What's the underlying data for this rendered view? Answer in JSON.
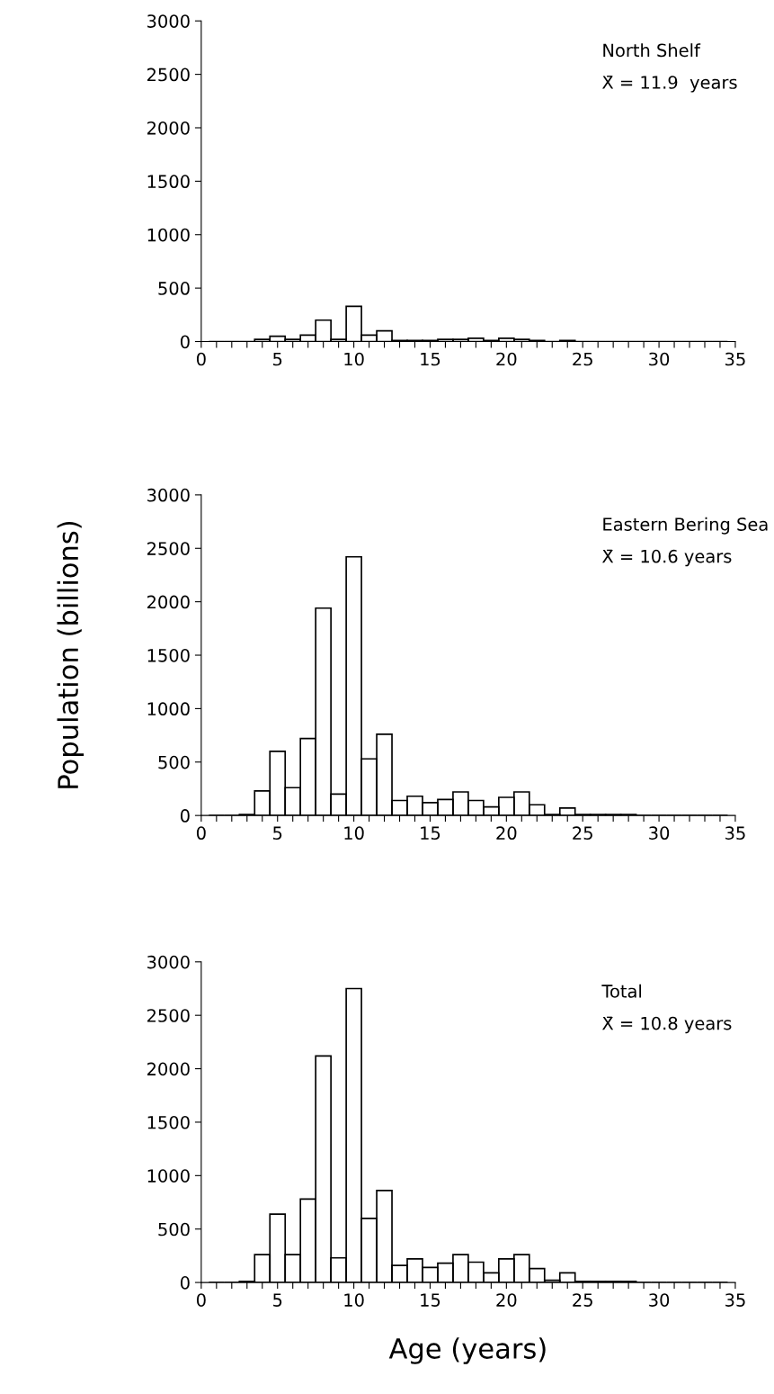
{
  "chart_data": [
    {
      "type": "histogram",
      "bins": [
        0.5,
        1.5,
        2.5,
        3.5,
        4.5,
        5.5,
        6.5,
        7.5,
        8.5,
        9.5,
        10.5,
        11.5,
        12.5,
        13.5,
        14.5,
        15.5,
        16.5,
        17.5,
        18.5,
        19.5,
        20.5,
        21.5,
        22.5,
        23.5,
        24.5,
        25.5,
        26.5,
        27.5,
        28.5,
        29.5,
        30.5,
        31.5,
        32.5,
        33.5,
        34.5
      ],
      "values": [
        0,
        0,
        0,
        20,
        50,
        20,
        60,
        200,
        20,
        330,
        60,
        100,
        10,
        10,
        10,
        20,
        20,
        30,
        10,
        30,
        20,
        10,
        0,
        10,
        0,
        0,
        0,
        0,
        0,
        0,
        0,
        0,
        0,
        0
      ],
      "color": "#000000",
      "annotations": [
        "North Shelf",
        "X̄ = 11.9  years"
      ],
      "xlim": [
        0,
        35
      ],
      "ylim": [
        0,
        3000
      ],
      "yticks": [
        0,
        500,
        1000,
        1500,
        2000,
        2500,
        3000
      ],
      "xticks": [
        0,
        {
          "value": 1,
          "label": null
        },
        {
          "value": 2,
          "label": null
        },
        {
          "value": 3,
          "label": null
        },
        {
          "value": 4,
          "label": null
        },
        5,
        {
          "value": 6,
          "label": null
        },
        {
          "value": 7,
          "label": null
        },
        {
          "value": 8,
          "label": null
        },
        {
          "value": 9,
          "label": null
        },
        10,
        {
          "value": 11,
          "label": null
        },
        {
          "value": 12,
          "label": null
        },
        {
          "value": 13,
          "label": null
        },
        {
          "value": 14,
          "label": null
        },
        15,
        {
          "value": 16,
          "label": null
        },
        {
          "value": 17,
          "label": null
        },
        {
          "value": 18,
          "label": null
        },
        {
          "value": 19,
          "label": null
        },
        20,
        {
          "value": 21,
          "label": null
        },
        {
          "value": 22,
          "label": null
        },
        {
          "value": 23,
          "label": null
        },
        {
          "value": 24,
          "label": null
        },
        25,
        {
          "value": 26,
          "label": null
        },
        {
          "value": 27,
          "label": null
        },
        {
          "value": 28,
          "label": null
        },
        {
          "value": 29,
          "label": null
        },
        30,
        {
          "value": 31,
          "label": null
        },
        {
          "value": 32,
          "label": null
        },
        {
          "value": 33,
          "label": null
        },
        {
          "value": 34,
          "label": null
        },
        35
      ]
    },
    {
      "type": "histogram",
      "bins": [
        0.5,
        1.5,
        2.5,
        3.5,
        4.5,
        5.5,
        6.5,
        7.5,
        8.5,
        9.5,
        10.5,
        11.5,
        12.5,
        13.5,
        14.5,
        15.5,
        16.5,
        17.5,
        18.5,
        19.5,
        20.5,
        21.5,
        22.5,
        23.5,
        24.5,
        25.5,
        26.5,
        27.5,
        28.5,
        29.5,
        30.5,
        31.5,
        32.5,
        33.5,
        34.5
      ],
      "values": [
        0,
        0,
        10,
        230,
        600,
        260,
        720,
        1940,
        200,
        2420,
        530,
        760,
        140,
        180,
        120,
        150,
        220,
        140,
        80,
        170,
        220,
        100,
        10,
        70,
        10,
        10,
        10,
        10,
        0,
        0,
        0,
        0,
        0,
        0
      ],
      "color": "#000000",
      "ylabel": "Population (billions)",
      "annotations": [
        "Eastern Bering Sea",
        "X̄ = 10.6 years"
      ],
      "xlim": [
        0,
        35
      ],
      "ylim": [
        0,
        3000
      ],
      "yticks": [
        0,
        500,
        1000,
        1500,
        2000,
        2500,
        3000
      ],
      "xticks": [
        0,
        {
          "value": 1,
          "label": null
        },
        {
          "value": 2,
          "label": null
        },
        {
          "value": 3,
          "label": null
        },
        {
          "value": 4,
          "label": null
        },
        5,
        {
          "value": 6,
          "label": null
        },
        {
          "value": 7,
          "label": null
        },
        {
          "value": 8,
          "label": null
        },
        {
          "value": 9,
          "label": null
        },
        10,
        {
          "value": 11,
          "label": null
        },
        {
          "value": 12,
          "label": null
        },
        {
          "value": 13,
          "label": null
        },
        {
          "value": 14,
          "label": null
        },
        15,
        {
          "value": 16,
          "label": null
        },
        {
          "value": 17,
          "label": null
        },
        {
          "value": 18,
          "label": null
        },
        {
          "value": 19,
          "label": null
        },
        20,
        {
          "value": 21,
          "label": null
        },
        {
          "value": 22,
          "label": null
        },
        {
          "value": 23,
          "label": null
        },
        {
          "value": 24,
          "label": null
        },
        25,
        {
          "value": 26,
          "label": null
        },
        {
          "value": 27,
          "label": null
        },
        {
          "value": 28,
          "label": null
        },
        {
          "value": 29,
          "label": null
        },
        30,
        {
          "value": 31,
          "label": null
        },
        {
          "value": 32,
          "label": null
        },
        {
          "value": 33,
          "label": null
        },
        {
          "value": 34,
          "label": null
        },
        35
      ]
    },
    {
      "type": "histogram",
      "bins": [
        0.5,
        1.5,
        2.5,
        3.5,
        4.5,
        5.5,
        6.5,
        7.5,
        8.5,
        9.5,
        10.5,
        11.5,
        12.5,
        13.5,
        14.5,
        15.5,
        16.5,
        17.5,
        18.5,
        19.5,
        20.5,
        21.5,
        22.5,
        23.5,
        24.5,
        25.5,
        26.5,
        27.5,
        28.5,
        29.5,
        30.5,
        31.5,
        32.5,
        33.5,
        34.5
      ],
      "values": [
        0,
        0,
        10,
        260,
        640,
        260,
        780,
        2120,
        230,
        2750,
        600,
        860,
        160,
        220,
        140,
        180,
        260,
        190,
        90,
        220,
        260,
        130,
        20,
        90,
        10,
        10,
        10,
        10,
        0,
        0,
        0,
        0,
        0,
        0
      ],
      "color": "#000000",
      "xlabel": "Age (years)",
      "annotations": [
        "Total",
        "X̄ = 10.8 years"
      ],
      "xlim": [
        0,
        35
      ],
      "ylim": [
        0,
        3000
      ],
      "yticks": [
        0,
        500,
        1000,
        1500,
        2000,
        2500,
        3000
      ],
      "xticks": [
        0,
        {
          "value": 1,
          "label": null
        },
        {
          "value": 2,
          "label": null
        },
        {
          "value": 3,
          "label": null
        },
        {
          "value": 4,
          "label": null
        },
        5,
        {
          "value": 6,
          "label": null
        },
        {
          "value": 7,
          "label": null
        },
        {
          "value": 8,
          "label": null
        },
        {
          "value": 9,
          "label": null
        },
        10,
        {
          "value": 11,
          "label": null
        },
        {
          "value": 12,
          "label": null
        },
        {
          "value": 13,
          "label": null
        },
        {
          "value": 14,
          "label": null
        },
        15,
        {
          "value": 16,
          "label": null
        },
        {
          "value": 17,
          "label": null
        },
        {
          "value": 18,
          "label": null
        },
        {
          "value": 19,
          "label": null
        },
        20,
        {
          "value": 21,
          "label": null
        },
        {
          "value": 22,
          "label": null
        },
        {
          "value": 23,
          "label": null
        },
        {
          "value": 24,
          "label": null
        },
        25,
        {
          "value": 26,
          "label": null
        },
        {
          "value": 27,
          "label": null
        },
        {
          "value": 28,
          "label": null
        },
        {
          "value": 29,
          "label": null
        },
        30,
        {
          "value": 31,
          "label": null
        },
        {
          "value": 32,
          "label": null
        },
        {
          "value": 33,
          "label": null
        },
        {
          "value": 34,
          "label": null
        },
        35
      ]
    }
  ]
}
